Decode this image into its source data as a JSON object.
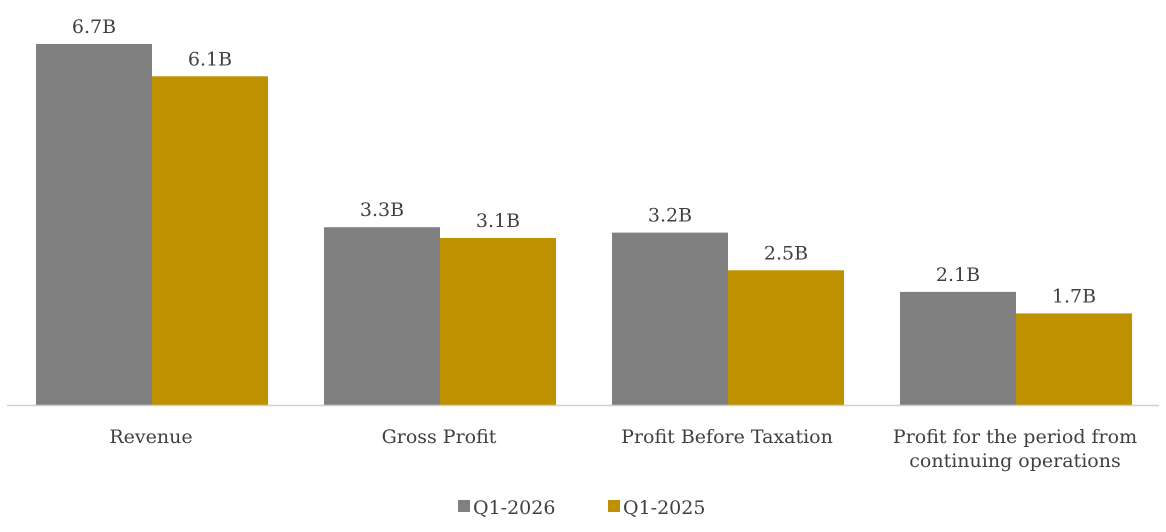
{
  "chart_data": {
    "type": "bar",
    "categories": [
      [
        "Revenue"
      ],
      [
        "Gross Profit"
      ],
      [
        "Profit Before Taxation"
      ],
      [
        "Profit for the period from",
        "continuing operations"
      ]
    ],
    "series": [
      {
        "name": "Q1-2026",
        "color": "#808080",
        "values": [
          6.7,
          3.3,
          3.2,
          2.1
        ],
        "labels": [
          "6.7B",
          "3.3B",
          "3.2B",
          "2.1B"
        ]
      },
      {
        "name": "Q1-2025",
        "color": "#BF9000",
        "values": [
          6.1,
          3.1,
          2.5,
          1.7
        ],
        "labels": [
          "6.1B",
          "3.1B",
          "2.5B",
          "1.7B"
        ]
      }
    ],
    "ylim": [
      0,
      6.7
    ],
    "unit": "B",
    "grid": false,
    "legend": "bottom-center"
  }
}
